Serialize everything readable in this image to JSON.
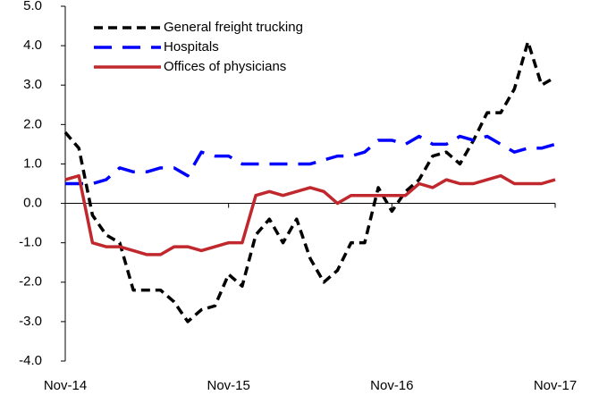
{
  "chart_data": {
    "type": "line",
    "categories": [
      "Nov-14",
      null,
      null,
      null,
      null,
      null,
      null,
      null,
      null,
      null,
      null,
      null,
      "Nov-15",
      null,
      null,
      null,
      null,
      null,
      null,
      null,
      null,
      null,
      null,
      null,
      "Nov-16",
      null,
      null,
      null,
      null,
      null,
      null,
      null,
      null,
      null,
      null,
      null,
      "Nov-17"
    ],
    "series": [
      {
        "name": "General freight trucking",
        "color": "#000000",
        "dash": "dashed",
        "values": [
          1.8,
          1.4,
          -0.3,
          -0.8,
          -1.0,
          -2.2,
          -2.2,
          -2.2,
          -2.5,
          -3.0,
          -2.7,
          -2.6,
          -1.8,
          -2.1,
          -0.8,
          -0.4,
          -1.0,
          -0.4,
          -1.4,
          -2.0,
          -1.7,
          -1.0,
          -1.0,
          0.4,
          -0.2,
          0.3,
          0.6,
          1.2,
          1.3,
          1.0,
          1.6,
          2.3,
          2.3,
          2.9,
          4.1,
          3.0,
          3.2
        ]
      },
      {
        "name": "Hospitals",
        "color": "#0000ff",
        "dash": "long-dashed",
        "values": [
          0.5,
          0.5,
          0.5,
          0.6,
          0.9,
          0.8,
          0.8,
          0.9,
          0.9,
          0.7,
          1.3,
          1.2,
          1.2,
          1.0,
          1.0,
          1.0,
          1.0,
          1.0,
          1.0,
          1.1,
          1.2,
          1.2,
          1.3,
          1.6,
          1.6,
          1.5,
          1.7,
          1.5,
          1.5,
          1.7,
          1.6,
          1.7,
          1.5,
          1.3,
          1.4,
          1.4,
          1.5
        ]
      },
      {
        "name": "Offices of physicians",
        "color": "#c0282d",
        "dash": "solid",
        "values": [
          0.6,
          0.7,
          -1.0,
          -1.1,
          -1.1,
          -1.2,
          -1.3,
          -1.3,
          -1.1,
          -1.1,
          -1.2,
          -1.1,
          -1.0,
          -1.0,
          0.2,
          0.3,
          0.2,
          0.3,
          0.4,
          0.3,
          0.0,
          0.2,
          0.2,
          0.2,
          0.2,
          0.2,
          0.5,
          0.4,
          0.6,
          0.5,
          0.5,
          0.6,
          0.7,
          0.5,
          0.5,
          0.5,
          0.6
        ]
      }
    ],
    "ylim": [
      -4,
      5
    ],
    "yticks": [
      {
        "value": -4,
        "label": "-4.0"
      },
      {
        "value": -3,
        "label": "-3.0"
      },
      {
        "value": -2,
        "label": "-2.0"
      },
      {
        "value": -1,
        "label": "-1.0"
      },
      {
        "value": 0,
        "label": "0.0"
      },
      {
        "value": 1,
        "label": "1.0"
      },
      {
        "value": 2,
        "label": "2.0"
      },
      {
        "value": 3,
        "label": "3.0"
      },
      {
        "value": 4,
        "label": "4.0"
      },
      {
        "value": 5,
        "label": "5.0"
      }
    ],
    "legend": "upper-left"
  }
}
